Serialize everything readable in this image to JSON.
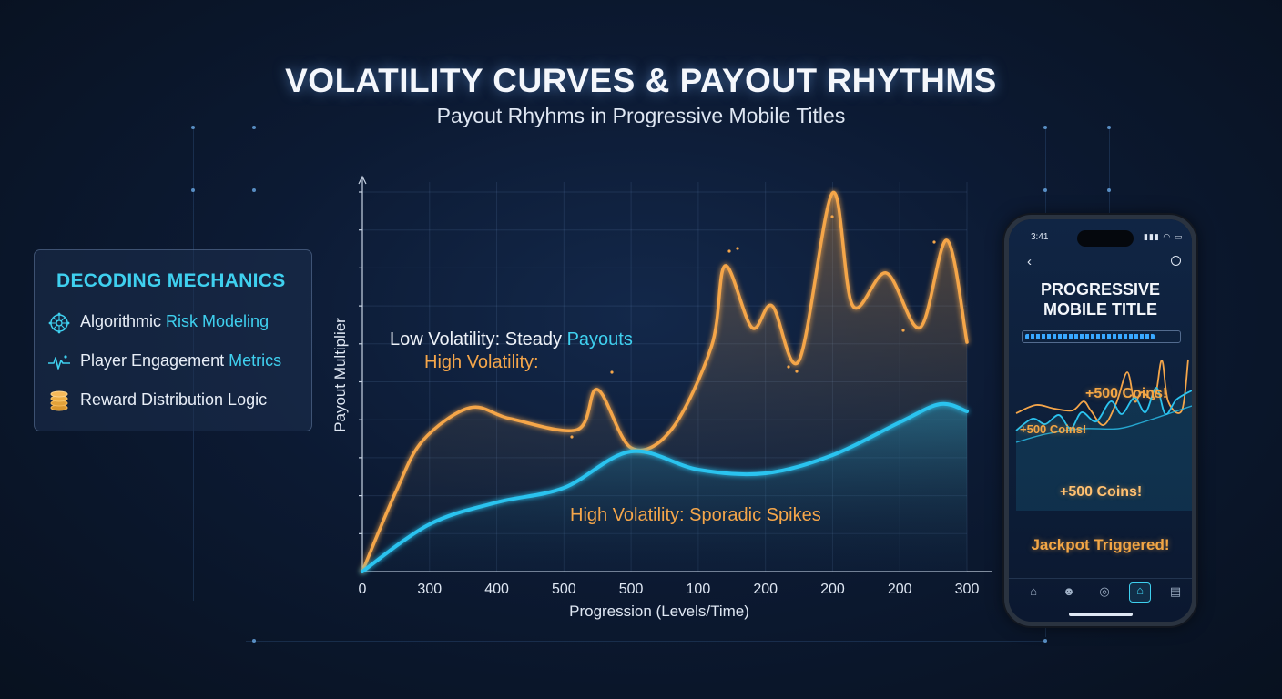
{
  "title": "VOLATILITY CURVES & PAYOUT RHYTHMS",
  "subtitle": "Payout Rhyhms in Progressive Mobile Titles",
  "mechanics": {
    "title": "DECODING MECHANICS",
    "items": [
      {
        "icon": "brain-circuit-icon",
        "text": "Algorithmic ",
        "highlight": "Risk Modeling"
      },
      {
        "icon": "pulse-icon",
        "text": "Player Engagement ",
        "highlight": "Metrics"
      },
      {
        "icon": "coin-stack-icon",
        "text": "Reward Distribution Logic",
        "highlight": ""
      }
    ]
  },
  "chart_data": {
    "type": "line",
    "xlabel": "Progression (Levels/Time)",
    "ylabel": "Payout Multiplier",
    "categories": [
      "0",
      "300",
      "400",
      "500",
      "500",
      "100",
      "200",
      "200",
      "200",
      "300"
    ],
    "annotations": [
      {
        "text": "Low Volatility: Steady ",
        "highlight": "Payouts"
      },
      {
        "text": "High Volatility:"
      },
      {
        "text": "High Volatility: Sporadic Spikes"
      }
    ],
    "series": [
      {
        "name": "High Volatility",
        "color": "#f5a64a",
        "points": [
          [
            0,
            0
          ],
          [
            0.5,
            2.2
          ],
          [
            0.9,
            3.6
          ],
          [
            1.6,
            4.5
          ],
          [
            2.2,
            4.2
          ],
          [
            3.2,
            3.9
          ],
          [
            3.5,
            5.0
          ],
          [
            4.0,
            3.4
          ],
          [
            4.6,
            3.9
          ],
          [
            5.2,
            6.2
          ],
          [
            5.4,
            8.4
          ],
          [
            5.8,
            6.7
          ],
          [
            6.1,
            7.3
          ],
          [
            6.5,
            5.8
          ],
          [
            7.0,
            10.4
          ],
          [
            7.3,
            7.3
          ],
          [
            7.8,
            8.2
          ],
          [
            8.3,
            6.7
          ],
          [
            8.7,
            9.1
          ],
          [
            9.0,
            6.3
          ]
        ]
      },
      {
        "name": "Low Volatility",
        "color": "#2bc3ef",
        "points": [
          [
            0,
            0
          ],
          [
            1.0,
            1.3
          ],
          [
            2.0,
            1.9
          ],
          [
            3.0,
            2.3
          ],
          [
            4.0,
            3.3
          ],
          [
            5.0,
            2.8
          ],
          [
            6.0,
            2.7
          ],
          [
            7.0,
            3.2
          ],
          [
            8.0,
            4.1
          ],
          [
            8.6,
            4.6
          ],
          [
            9.0,
            4.4
          ]
        ]
      }
    ],
    "xlim": [
      0,
      9
    ],
    "ylim": [
      0,
      10.4
    ],
    "grid": true,
    "legend": "none"
  },
  "phone": {
    "time": "3:41",
    "title_line1": "PROGRESSIVE",
    "title_line2": "MOBILE TITLE",
    "progress": 0.85,
    "coin_labels": [
      "+500 Coins!",
      "+500 Coins!",
      "+500 Coins!"
    ],
    "jackpot": "Jackpot Triggered!",
    "nav": [
      "home-icon",
      "users-icon",
      "globe-icon",
      "shop-icon",
      "wallet-icon"
    ]
  },
  "colors": {
    "accent_cyan": "#3fd0ef",
    "accent_orange": "#f5a64a",
    "background": "#0c1a33"
  }
}
